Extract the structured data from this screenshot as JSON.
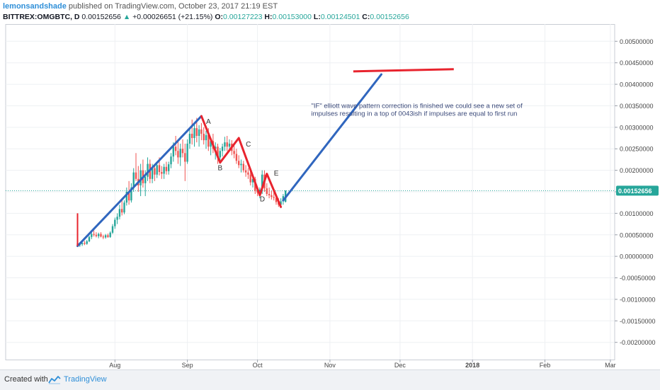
{
  "header": {
    "author": "lemonsandshade",
    "published_text": "published on TradingView.com, October 23, 2017 21:19 EST",
    "symbol": "BITTREX:OMGBTC, D",
    "last_price": "0.00152656",
    "change_arrow": "▲",
    "change": "+0.00026651 (+21.15%)",
    "o_label": "O:",
    "o_value": "0.00127223",
    "h_label": "H:",
    "h_value": "0.00153000",
    "l_label": "L:",
    "l_value": "0.00124501",
    "c_label": "C:",
    "c_value": "0.00152656"
  },
  "footer": {
    "created_with": "Created with",
    "brand": "TradingView",
    "logo_icon": "tradingview-logo-icon"
  },
  "colors": {
    "up": "#26a69a",
    "down": "#ef5350",
    "blue_line": "#3066be",
    "red_line": "#e8242e",
    "price_line": "#26a69a"
  },
  "chart_data": {
    "type": "candlestick",
    "title": "",
    "xlabel": "",
    "ylabel": "",
    "x_ticks": [
      "Aug",
      "Sep",
      "Oct",
      "Nov",
      "Dec",
      "2018",
      "Feb",
      "Mar"
    ],
    "y_ticks": [
      "0.00500000",
      "0.00450000",
      "0.00400000",
      "0.00350000",
      "0.00300000",
      "0.00250000",
      "0.00200000",
      "0.00150000",
      "0.00100000",
      "0.00050000",
      "0.00000000",
      "-0.00050000",
      "-0.00100000",
      "-0.00150000",
      "-0.00200000"
    ],
    "y_range": [
      -0.0024,
      0.0054
    ],
    "last_price_label": "0.00152656",
    "grid": true,
    "candles": [
      {
        "date": "2017-07-16",
        "o": 0.0003,
        "h": 0.001,
        "l": 0.00022,
        "c": 0.00026
      },
      {
        "date": "2017-07-17",
        "o": 0.00026,
        "h": 0.00032,
        "l": 0.00022,
        "c": 0.00028
      },
      {
        "date": "2017-07-18",
        "o": 0.00028,
        "h": 0.00034,
        "l": 0.00024,
        "c": 0.00031
      },
      {
        "date": "2017-07-19",
        "o": 0.00031,
        "h": 0.00036,
        "l": 0.00026,
        "c": 0.00029
      },
      {
        "date": "2017-07-20",
        "o": 0.00029,
        "h": 0.00038,
        "l": 0.00027,
        "c": 0.00035
      },
      {
        "date": "2017-07-21",
        "o": 0.00035,
        "h": 0.00048,
        "l": 0.00033,
        "c": 0.00045
      },
      {
        "date": "2017-07-22",
        "o": 0.00045,
        "h": 0.00058,
        "l": 0.0004,
        "c": 0.00052
      },
      {
        "date": "2017-07-23",
        "o": 0.00052,
        "h": 0.0006,
        "l": 0.00046,
        "c": 0.0005
      },
      {
        "date": "2017-07-24",
        "o": 0.0005,
        "h": 0.00056,
        "l": 0.00044,
        "c": 0.00047
      },
      {
        "date": "2017-07-25",
        "o": 0.00047,
        "h": 0.00055,
        "l": 0.00042,
        "c": 0.00052
      },
      {
        "date": "2017-07-26",
        "o": 0.00052,
        "h": 0.00056,
        "l": 0.00044,
        "c": 0.00046
      },
      {
        "date": "2017-07-27",
        "o": 0.00046,
        "h": 0.0005,
        "l": 0.0004,
        "c": 0.00044
      },
      {
        "date": "2017-07-28",
        "o": 0.00044,
        "h": 0.00052,
        "l": 0.00041,
        "c": 0.00049
      },
      {
        "date": "2017-07-29",
        "o": 0.00049,
        "h": 0.00053,
        "l": 0.00043,
        "c": 0.00045
      },
      {
        "date": "2017-07-30",
        "o": 0.00045,
        "h": 0.00058,
        "l": 0.00043,
        "c": 0.00055
      },
      {
        "date": "2017-07-31",
        "o": 0.00055,
        "h": 0.00075,
        "l": 0.00052,
        "c": 0.0007
      },
      {
        "date": "2017-08-01",
        "o": 0.0007,
        "h": 0.0009,
        "l": 0.00064,
        "c": 0.00085
      },
      {
        "date": "2017-08-02",
        "o": 0.00085,
        "h": 0.001,
        "l": 0.00075,
        "c": 0.00092
      },
      {
        "date": "2017-08-03",
        "o": 0.00092,
        "h": 0.0012,
        "l": 0.00086,
        "c": 0.0011
      },
      {
        "date": "2017-08-04",
        "o": 0.0011,
        "h": 0.00135,
        "l": 0.00095,
        "c": 0.00102
      },
      {
        "date": "2017-08-05",
        "o": 0.00102,
        "h": 0.0013,
        "l": 0.00098,
        "c": 0.00125
      },
      {
        "date": "2017-08-06",
        "o": 0.00125,
        "h": 0.0016,
        "l": 0.00118,
        "c": 0.0015
      },
      {
        "date": "2017-08-07",
        "o": 0.0015,
        "h": 0.00175,
        "l": 0.0012,
        "c": 0.0013
      },
      {
        "date": "2017-08-08",
        "o": 0.0013,
        "h": 0.0017,
        "l": 0.00125,
        "c": 0.0016
      },
      {
        "date": "2017-08-09",
        "o": 0.0016,
        "h": 0.00205,
        "l": 0.0015,
        "c": 0.00195
      },
      {
        "date": "2017-08-10",
        "o": 0.00195,
        "h": 0.0024,
        "l": 0.00175,
        "c": 0.0018
      },
      {
        "date": "2017-08-11",
        "o": 0.0018,
        "h": 0.0021,
        "l": 0.0015,
        "c": 0.00165
      },
      {
        "date": "2017-08-12",
        "o": 0.00165,
        "h": 0.00215,
        "l": 0.0014,
        "c": 0.002
      },
      {
        "date": "2017-08-13",
        "o": 0.002,
        "h": 0.00225,
        "l": 0.0016,
        "c": 0.0017
      },
      {
        "date": "2017-08-14",
        "o": 0.0017,
        "h": 0.002,
        "l": 0.0014,
        "c": 0.00185
      },
      {
        "date": "2017-08-15",
        "o": 0.00185,
        "h": 0.0023,
        "l": 0.00175,
        "c": 0.00215
      },
      {
        "date": "2017-08-16",
        "o": 0.00215,
        "h": 0.00225,
        "l": 0.0017,
        "c": 0.0018
      },
      {
        "date": "2017-08-17",
        "o": 0.0018,
        "h": 0.00215,
        "l": 0.0017,
        "c": 0.00205
      },
      {
        "date": "2017-08-18",
        "o": 0.00205,
        "h": 0.00215,
        "l": 0.00175,
        "c": 0.0019
      },
      {
        "date": "2017-08-19",
        "o": 0.0019,
        "h": 0.0022,
        "l": 0.00182,
        "c": 0.00212
      },
      {
        "date": "2017-08-20",
        "o": 0.00212,
        "h": 0.0023,
        "l": 0.00188,
        "c": 0.00196
      },
      {
        "date": "2017-08-21",
        "o": 0.00196,
        "h": 0.0021,
        "l": 0.0018,
        "c": 0.00192
      },
      {
        "date": "2017-08-22",
        "o": 0.00192,
        "h": 0.00215,
        "l": 0.0018,
        "c": 0.00208
      },
      {
        "date": "2017-08-23",
        "o": 0.00208,
        "h": 0.0022,
        "l": 0.0019,
        "c": 0.00198
      },
      {
        "date": "2017-08-24",
        "o": 0.00198,
        "h": 0.0022,
        "l": 0.0019,
        "c": 0.00214
      },
      {
        "date": "2017-08-25",
        "o": 0.00214,
        "h": 0.0024,
        "l": 0.00205,
        "c": 0.00232
      },
      {
        "date": "2017-08-26",
        "o": 0.00232,
        "h": 0.00265,
        "l": 0.0022,
        "c": 0.00255
      },
      {
        "date": "2017-08-27",
        "o": 0.00255,
        "h": 0.0028,
        "l": 0.00235,
        "c": 0.00245
      },
      {
        "date": "2017-08-28",
        "o": 0.00245,
        "h": 0.0027,
        "l": 0.00215,
        "c": 0.0023
      },
      {
        "date": "2017-08-29",
        "o": 0.0023,
        "h": 0.00262,
        "l": 0.0021,
        "c": 0.0025
      },
      {
        "date": "2017-08-30",
        "o": 0.0025,
        "h": 0.00272,
        "l": 0.0023,
        "c": 0.0024
      },
      {
        "date": "2017-08-31",
        "o": 0.0024,
        "h": 0.00262,
        "l": 0.00175,
        "c": 0.0022
      },
      {
        "date": "2017-09-01",
        "o": 0.0022,
        "h": 0.00272,
        "l": 0.00215,
        "c": 0.00262
      },
      {
        "date": "2017-09-02",
        "o": 0.00262,
        "h": 0.003,
        "l": 0.0025,
        "c": 0.00285
      },
      {
        "date": "2017-09-03",
        "o": 0.00285,
        "h": 0.00318,
        "l": 0.0026,
        "c": 0.00275
      },
      {
        "date": "2017-09-04",
        "o": 0.00275,
        "h": 0.0031,
        "l": 0.00255,
        "c": 0.00298
      },
      {
        "date": "2017-09-05",
        "o": 0.00298,
        "h": 0.00322,
        "l": 0.00265,
        "c": 0.0028
      },
      {
        "date": "2017-09-06",
        "o": 0.0028,
        "h": 0.00305,
        "l": 0.00255,
        "c": 0.00295
      },
      {
        "date": "2017-09-07",
        "o": 0.00295,
        "h": 0.0031,
        "l": 0.0027,
        "c": 0.00285
      },
      {
        "date": "2017-09-08",
        "o": 0.00285,
        "h": 0.003,
        "l": 0.0026,
        "c": 0.0027
      },
      {
        "date": "2017-09-09",
        "o": 0.0027,
        "h": 0.00292,
        "l": 0.0025,
        "c": 0.00282
      },
      {
        "date": "2017-09-10",
        "o": 0.00282,
        "h": 0.00298,
        "l": 0.00245,
        "c": 0.00255
      },
      {
        "date": "2017-09-11",
        "o": 0.00255,
        "h": 0.00275,
        "l": 0.00235,
        "c": 0.00268
      },
      {
        "date": "2017-09-12",
        "o": 0.00268,
        "h": 0.00285,
        "l": 0.0024,
        "c": 0.0025
      },
      {
        "date": "2017-09-13",
        "o": 0.0025,
        "h": 0.00265,
        "l": 0.00225,
        "c": 0.00255
      },
      {
        "date": "2017-09-14",
        "o": 0.00255,
        "h": 0.00262,
        "l": 0.00215,
        "c": 0.0023
      },
      {
        "date": "2017-09-15",
        "o": 0.0023,
        "h": 0.00252,
        "l": 0.00215,
        "c": 0.00245
      },
      {
        "date": "2017-09-16",
        "o": 0.00245,
        "h": 0.00262,
        "l": 0.00232,
        "c": 0.00255
      },
      {
        "date": "2017-09-17",
        "o": 0.00255,
        "h": 0.00278,
        "l": 0.00245,
        "c": 0.00265
      },
      {
        "date": "2017-09-18",
        "o": 0.00265,
        "h": 0.0028,
        "l": 0.00245,
        "c": 0.00255
      },
      {
        "date": "2017-09-19",
        "o": 0.00255,
        "h": 0.00272,
        "l": 0.00245,
        "c": 0.00262
      },
      {
        "date": "2017-09-20",
        "o": 0.00262,
        "h": 0.0027,
        "l": 0.00235,
        "c": 0.00245
      },
      {
        "date": "2017-09-21",
        "o": 0.00245,
        "h": 0.00258,
        "l": 0.00228,
        "c": 0.00238
      },
      {
        "date": "2017-09-22",
        "o": 0.00238,
        "h": 0.0025,
        "l": 0.00215,
        "c": 0.00222
      },
      {
        "date": "2017-09-23",
        "o": 0.00222,
        "h": 0.00235,
        "l": 0.00205,
        "c": 0.00212
      },
      {
        "date": "2017-09-24",
        "o": 0.00212,
        "h": 0.00225,
        "l": 0.00195,
        "c": 0.00215
      },
      {
        "date": "2017-09-25",
        "o": 0.00215,
        "h": 0.00222,
        "l": 0.00195,
        "c": 0.002
      },
      {
        "date": "2017-09-26",
        "o": 0.002,
        "h": 0.00212,
        "l": 0.00185,
        "c": 0.00195
      },
      {
        "date": "2017-09-27",
        "o": 0.00195,
        "h": 0.00205,
        "l": 0.0018,
        "c": 0.0019
      },
      {
        "date": "2017-09-28",
        "o": 0.0019,
        "h": 0.00198,
        "l": 0.00165,
        "c": 0.00172
      },
      {
        "date": "2017-09-29",
        "o": 0.00172,
        "h": 0.00188,
        "l": 0.0016,
        "c": 0.0018
      },
      {
        "date": "2017-09-30",
        "o": 0.0018,
        "h": 0.00185,
        "l": 0.00145,
        "c": 0.00152
      },
      {
        "date": "2017-10-01",
        "o": 0.00152,
        "h": 0.00162,
        "l": 0.0014,
        "c": 0.00148
      },
      {
        "date": "2017-10-02",
        "o": 0.00148,
        "h": 0.0016,
        "l": 0.00135,
        "c": 0.00155
      },
      {
        "date": "2017-10-03",
        "o": 0.00155,
        "h": 0.002,
        "l": 0.00145,
        "c": 0.0019
      },
      {
        "date": "2017-10-04",
        "o": 0.0019,
        "h": 0.002,
        "l": 0.0015,
        "c": 0.00158
      },
      {
        "date": "2017-10-05",
        "o": 0.00158,
        "h": 0.0017,
        "l": 0.0014,
        "c": 0.00145
      },
      {
        "date": "2017-10-06",
        "o": 0.00145,
        "h": 0.0016,
        "l": 0.00135,
        "c": 0.00142
      },
      {
        "date": "2017-10-07",
        "o": 0.00142,
        "h": 0.00152,
        "l": 0.00132,
        "c": 0.00138
      },
      {
        "date": "2017-10-08",
        "o": 0.00138,
        "h": 0.0015,
        "l": 0.0013,
        "c": 0.00136
      },
      {
        "date": "2017-10-09",
        "o": 0.00136,
        "h": 0.00142,
        "l": 0.0012,
        "c": 0.00126
      },
      {
        "date": "2017-10-10",
        "o": 0.00126,
        "h": 0.00135,
        "l": 0.00115,
        "c": 0.0012
      },
      {
        "date": "2017-10-11",
        "o": 0.0012,
        "h": 0.00135,
        "l": 0.00112,
        "c": 0.00128
      },
      {
        "date": "2017-10-12",
        "o": 0.00128,
        "h": 0.00145,
        "l": 0.0012,
        "c": 0.0014
      },
      {
        "date": "2017-10-13",
        "o": 0.00127,
        "h": 0.00153,
        "l": 0.00125,
        "c": 0.00153
      }
    ],
    "drawings": {
      "blue_lines": [
        {
          "from": {
            "date": "2017-07-16",
            "price": 0.00024
          },
          "to": {
            "date": "2017-09-07",
            "price": 0.00326
          }
        },
        {
          "from": {
            "date": "2017-10-12",
            "price": 0.0013
          },
          "to": {
            "date": "2017-11-23",
            "price": 0.00423
          }
        }
      ],
      "red_vertical": {
        "date": "2017-07-16",
        "from_price": 0.001,
        "to_price": 0.00024
      },
      "red_zigzag": [
        {
          "date": "2017-09-07",
          "price": 0.00326
        },
        {
          "date": "2017-09-15",
          "price": 0.00218
        },
        {
          "date": "2017-09-23",
          "price": 0.00275
        },
        {
          "date": "2017-10-02",
          "price": 0.00142
        },
        {
          "date": "2017-10-05",
          "price": 0.00192
        },
        {
          "date": "2017-10-11",
          "price": 0.00115
        }
      ],
      "red_target": {
        "from": {
          "date": "2017-11-11",
          "price": 0.0043
        },
        "to": {
          "date": "2017-12-24",
          "price": 0.00435
        }
      }
    },
    "wave_labels": [
      {
        "text": "A",
        "date": "2017-09-09",
        "price": 0.00308
      },
      {
        "text": "B",
        "date": "2017-09-14",
        "price": 0.002
      },
      {
        "text": "C",
        "date": "2017-09-26",
        "price": 0.00255
      },
      {
        "text": "D",
        "date": "2017-10-02",
        "price": 0.00128
      },
      {
        "text": "E",
        "date": "2017-10-08",
        "price": 0.00188
      }
    ],
    "annotation": {
      "lines": [
        "\"IF\" elliott wave pattern correction is finished we could see a new set of",
        "impulses resulting in a top of 0043ish if impulses are equal to first run"
      ],
      "date": "2017-10-24",
      "price": 0.00345
    }
  }
}
